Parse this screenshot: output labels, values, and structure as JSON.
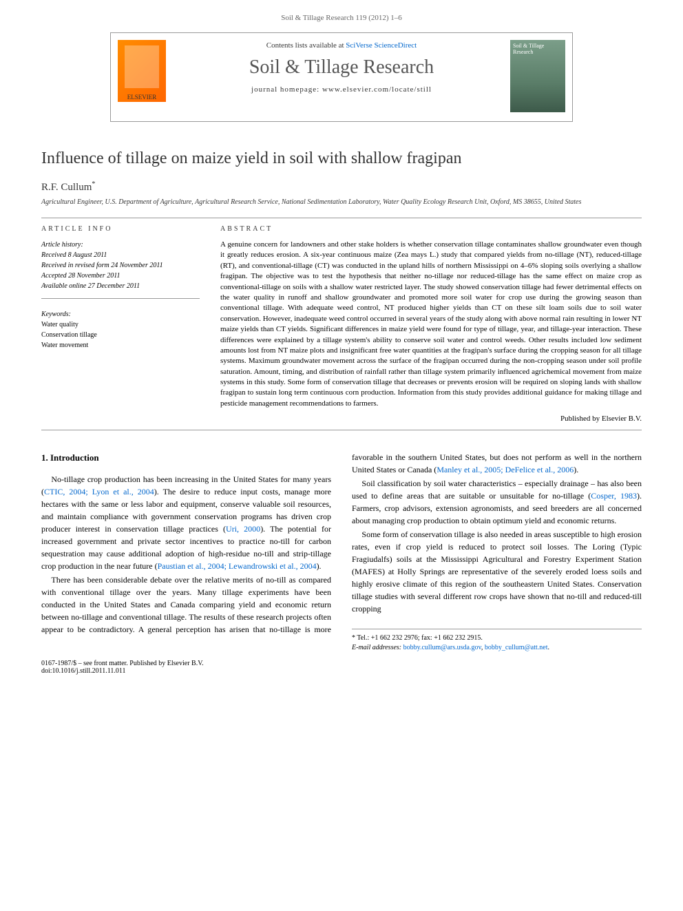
{
  "header": {
    "citation": "Soil & Tillage Research 119 (2012) 1–6",
    "contents_prefix": "Contents lists available at ",
    "contents_link": "SciVerse ScienceDirect",
    "journal_name": "Soil & Tillage Research",
    "homepage_prefix": "journal homepage: ",
    "homepage_url": "www.elsevier.com/locate/still",
    "publisher_logo": "ELSEVIER",
    "cover_text": "Soil & Tillage Research"
  },
  "article": {
    "title": "Influence of tillage on maize yield in soil with shallow fragipan",
    "author": "R.F. Cullum",
    "author_marker": "*",
    "affiliation": "Agricultural Engineer, U.S. Department of Agriculture, Agricultural Research Service, National Sedimentation Laboratory, Water Quality Ecology Research Unit, Oxford, MS 38655, United States"
  },
  "info": {
    "section_label": "ARTICLE INFO",
    "history_title": "Article history:",
    "received": "Received 8 August 2011",
    "revised": "Received in revised form 24 November 2011",
    "accepted": "Accepted 28 November 2011",
    "online": "Available online 27 December 2011",
    "keywords_title": "Keywords:",
    "kw1": "Water quality",
    "kw2": "Conservation tillage",
    "kw3": "Water movement"
  },
  "abstract": {
    "label": "ABSTRACT",
    "text": "A genuine concern for landowners and other stake holders is whether conservation tillage contaminates shallow groundwater even though it greatly reduces erosion. A six-year continuous maize (Zea mays L.) study that compared yields from no-tillage (NT), reduced-tillage (RT), and conventional-tillage (CT) was conducted in the upland hills of northern Mississippi on 4–6% sloping soils overlying a shallow fragipan. The objective was to test the hypothesis that neither no-tillage nor reduced-tillage has the same effect on maize crop as conventional-tillage on soils with a shallow water restricted layer. The study showed conservation tillage had fewer detrimental effects on the water quality in runoff and shallow groundwater and promoted more soil water for crop use during the growing season than conventional tillage. With adequate weed control, NT produced higher yields than CT on these silt loam soils due to soil water conservation. However, inadequate weed control occurred in several years of the study along with above normal rain resulting in lower NT maize yields than CT yields. Significant differences in maize yield were found for type of tillage, year, and tillage-year interaction. These differences were explained by a tillage system's ability to conserve soil water and control weeds. Other results included low sediment amounts lost from NT maize plots and insignificant free water quantities at the fragipan's surface during the cropping season for all tillage systems. Maximum groundwater movement across the surface of the fragipan occurred during the non-cropping season under soil profile saturation. Amount, timing, and distribution of rainfall rather than tillage system primarily influenced agrichemical movement from maize systems in this study. Some form of conservation tillage that decreases or prevents erosion will be required on sloping lands with shallow fragipan to sustain long term continuous corn production. Information from this study provides additional guidance for making tillage and pesticide management recommendations to farmers.",
    "published_by": "Published by Elsevier B.V."
  },
  "intro": {
    "heading": "1. Introduction",
    "p1_a": "No-tillage crop production has been increasing in the United States for many years (",
    "p1_c1": "CTIC, 2004; Lyon et al., 2004",
    "p1_b": "). The desire to reduce input costs, manage more hectares with the same or less labor and equipment, conserve valuable soil resources, and maintain compliance with government conservation programs has driven crop producer interest in conservation tillage practices (",
    "p1_c2": "Uri, 2000",
    "p1_c": "). The potential for increased government and private sector incentives to practice no-till for carbon sequestration may cause additional adoption of high-residue no-till and strip-tillage crop production in the near future (",
    "p1_c3": "Paustian et al., 2004; Lewandrowski et al., 2004",
    "p1_d": ").",
    "p2": "There has been considerable debate over the relative merits of no-till as compared with conventional tillage over the years. Many tillage experiments have been conducted in the United States and Canada comparing yield and economic return between no-tillage and conventional tillage. The results of these research projects often appear to be contradictory. A general perception has arisen that no-tillage is more favorable in the southern United States, but does not perform as well in the northern United States or Canada (",
    "p2_c1": "Manley et al., 2005; DeFelice et al., 2006",
    "p2_b": ").",
    "p3_a": "Soil classification by soil water characteristics – especially drainage – has also been used to define areas that are suitable or unsuitable for no-tillage (",
    "p3_c1": "Cosper, 1983",
    "p3_b": "). Farmers, crop advisors, extension agronomists, and seed breeders are all concerned about managing crop production to obtain optimum yield and economic returns.",
    "p4": "Some form of conservation tillage is also needed in areas susceptible to high erosion rates, even if crop yield is reduced to protect soil losses. The Loring (Typic Fragiudalfs) soils at the Mississippi Agricultural and Forestry Experiment Station (MAFES) at Holly Springs are representative of the severely eroded loess soils and highly erosive climate of this region of the southeastern United States. Conservation tillage studies with several different row crops have shown that no-till and reduced-till cropping"
  },
  "footer": {
    "tel_label": "* Tel.: +1 662 232 2976; fax: +1 662 232 2915.",
    "email_label": "E-mail addresses:",
    "email1": "bobby.cullum@ars.usda.gov",
    "email2": "bobby_cullum@att.net",
    "copyright": "0167-1987/$ – see front matter. Published by Elsevier B.V.",
    "doi": "doi:10.1016/j.still.2011.11.011"
  }
}
